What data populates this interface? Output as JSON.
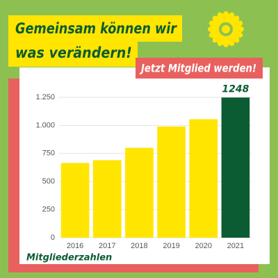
{
  "header": {
    "line1": "Gemeinsam können wir",
    "line2": "was verändern!"
  },
  "cta": "Jetzt Mitglied werden!",
  "chart_data": {
    "type": "bar",
    "caption": "Mitgliederzahlen",
    "categories": [
      "2016",
      "2017",
      "2018",
      "2019",
      "2020",
      "2021"
    ],
    "values": [
      665,
      690,
      800,
      990,
      1055,
      1248
    ],
    "value_labels": [
      null,
      null,
      null,
      null,
      null,
      "1248"
    ],
    "colors": [
      "#ffe500",
      "#ffe500",
      "#ffe500",
      "#ffe500",
      "#ffe500",
      "#0b5c33"
    ],
    "ylim": [
      0,
      1250
    ],
    "yticks": [
      0,
      250,
      500,
      750,
      {
        "value": 1000,
        "label": "1.000"
      },
      {
        "value": 1250,
        "label": "1.250"
      }
    ],
    "grid": true
  }
}
